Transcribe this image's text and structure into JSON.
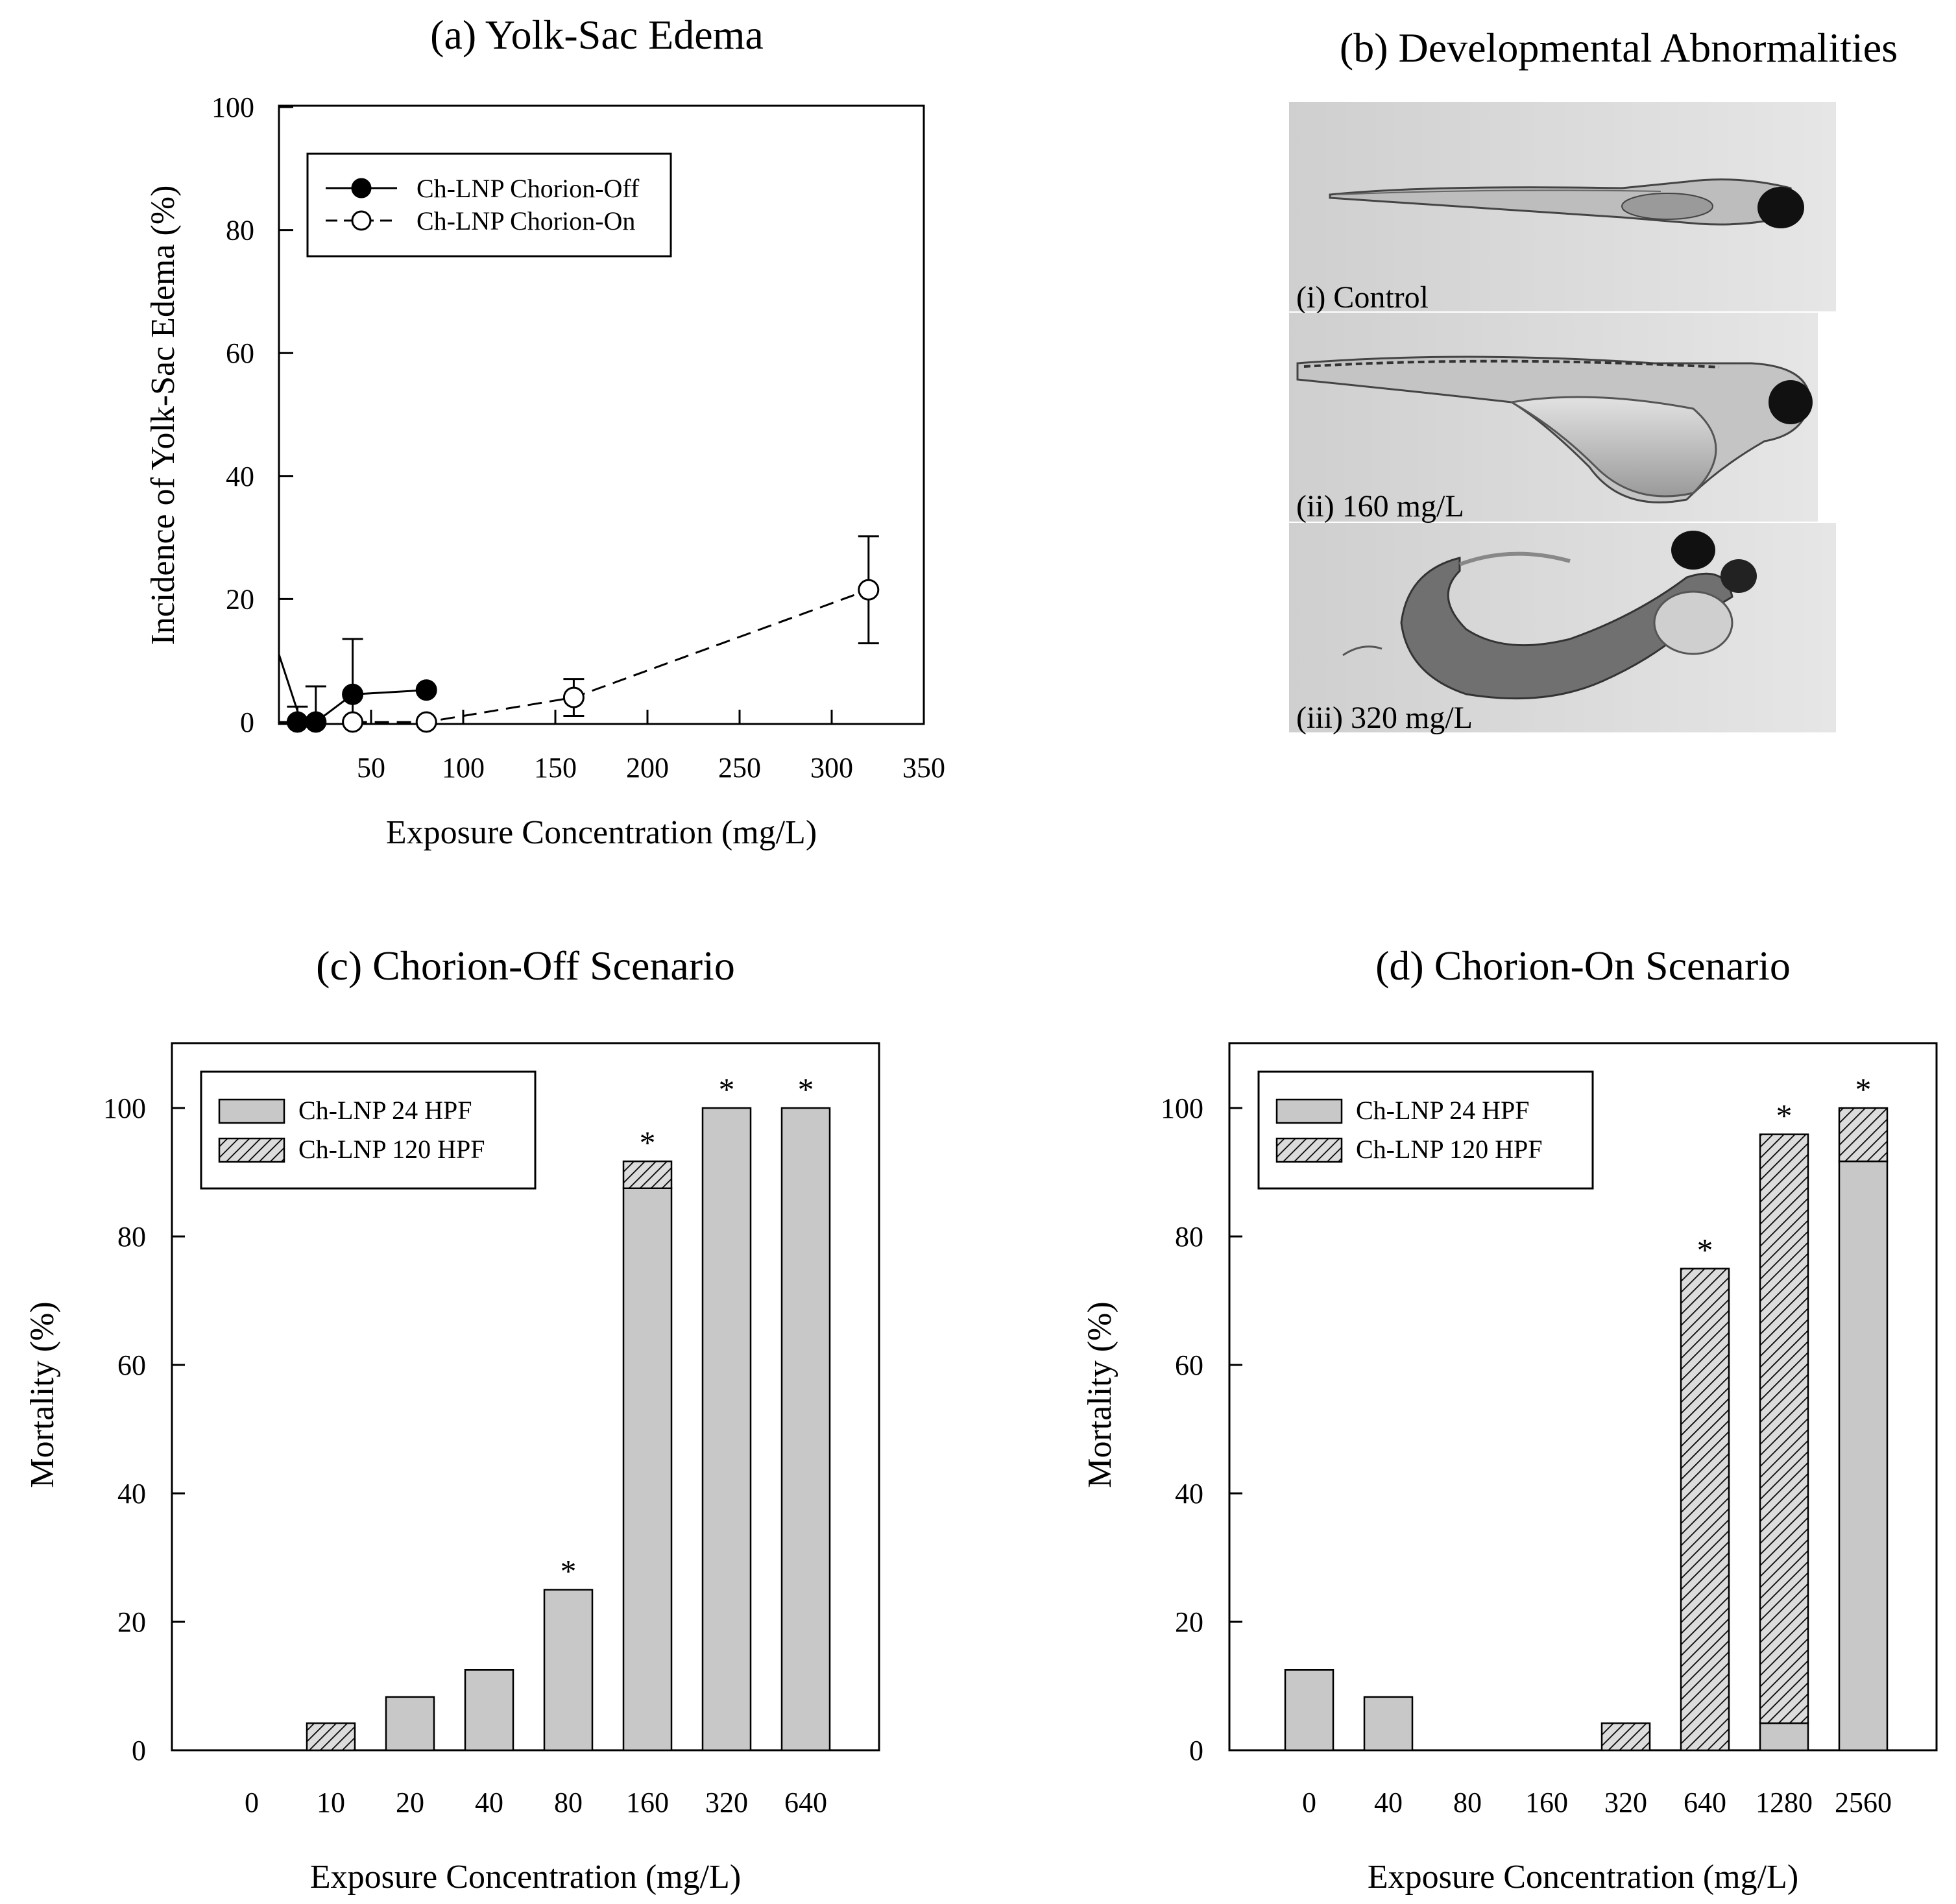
{
  "panel_a": {
    "title": "(a) Yolk-Sac Edema",
    "xlabel": "Exposure Concentration (mg/L)",
    "ylabel": "Incidence of Yolk-Sac Edema (%)"
  },
  "panel_b": {
    "title": "(b) Developmental Abnormalities",
    "photos": [
      {
        "label": "(i) Control"
      },
      {
        "label": "(ii) 160 mg/L"
      },
      {
        "label": "(iii) 320 mg/L"
      }
    ]
  },
  "panel_c": {
    "title": "(c) Chorion-Off Scenario",
    "xlabel": "Exposure Concentration (mg/L)",
    "ylabel": "Mortality (%)",
    "star": "*"
  },
  "panel_d": {
    "title": "(d) Chorion-On Scenario",
    "xlabel": "Exposure Concentration (mg/L)",
    "ylabel": "Mortality (%)",
    "star": "*"
  },
  "colors": {
    "bar_fill": "#c8c8c8",
    "hatch_bg": "#dcdcdc",
    "line": "#000000"
  },
  "chart_data": [
    {
      "id": "a",
      "type": "line",
      "title": "(a) Yolk-Sac Edema",
      "xlabel": "Exposure Concentration (mg/L)",
      "ylabel": "Incidence of Yolk-Sac Edema (%)",
      "xlim": [
        0,
        350
      ],
      "ylim": [
        0,
        100
      ],
      "xticks": [
        50,
        100,
        150,
        200,
        250,
        300,
        350
      ],
      "yticks": [
        0,
        20,
        40,
        60,
        80,
        100
      ],
      "legend_position": "top-left",
      "series": [
        {
          "name": "Ch-LNP Chorion-Off",
          "marker": "filled-circle",
          "line": "solid",
          "x": [
            10,
            20,
            40,
            80
          ],
          "y": [
            0,
            0,
            4.5,
            5.2
          ],
          "err": [
            2.5,
            5.8,
            9,
            0
          ]
        },
        {
          "name": "Ch-LNP Chorion-On",
          "marker": "open-circle",
          "line": "dashed",
          "x": [
            40,
            80,
            160,
            320
          ],
          "y": [
            0,
            0,
            4,
            21.5
          ],
          "err": [
            0,
            0,
            3,
            8.7
          ]
        }
      ]
    },
    {
      "id": "c",
      "type": "bar",
      "stacked": true,
      "title": "(c) Chorion-Off Scenario",
      "xlabel": "Exposure Concentration (mg/L)",
      "ylabel": "Mortality (%)",
      "ylim": [
        0,
        110
      ],
      "yticks": [
        0,
        20,
        40,
        60,
        80,
        100
      ],
      "legend_position": "top-left",
      "categories": [
        "0",
        "10",
        "20",
        "40",
        "80",
        "160",
        "320",
        "640"
      ],
      "significant": [
        false,
        false,
        false,
        false,
        true,
        true,
        true,
        true
      ],
      "series": [
        {
          "name": "Ch-LNP 24 HPF",
          "pattern": "solid",
          "values": [
            0,
            0,
            8.3,
            12.5,
            25,
            87.5,
            100,
            100
          ]
        },
        {
          "name": "Ch-LNP 120 HPF",
          "pattern": "hatched",
          "values": [
            0,
            4.2,
            0,
            0,
            0,
            4.2,
            0,
            0
          ]
        }
      ]
    },
    {
      "id": "d",
      "type": "bar",
      "stacked": true,
      "title": "(d) Chorion-On Scenario",
      "xlabel": "Exposure Concentration (mg/L)",
      "ylabel": "Mortality (%)",
      "ylim": [
        0,
        110
      ],
      "yticks": [
        0,
        20,
        40,
        60,
        80,
        100
      ],
      "legend_position": "top-left",
      "categories": [
        "0",
        "40",
        "80",
        "160",
        "320",
        "640",
        "1280",
        "2560"
      ],
      "significant": [
        false,
        false,
        false,
        false,
        false,
        true,
        true,
        true
      ],
      "series": [
        {
          "name": "Ch-LNP 24 HPF",
          "pattern": "solid",
          "values": [
            12.5,
            8.3,
            0,
            0,
            0,
            0,
            4.2,
            91.7
          ]
        },
        {
          "name": "Ch-LNP 120 HPF",
          "pattern": "hatched",
          "values": [
            0,
            0,
            0,
            0,
            4.2,
            75,
            91.7,
            8.3
          ]
        }
      ]
    }
  ]
}
